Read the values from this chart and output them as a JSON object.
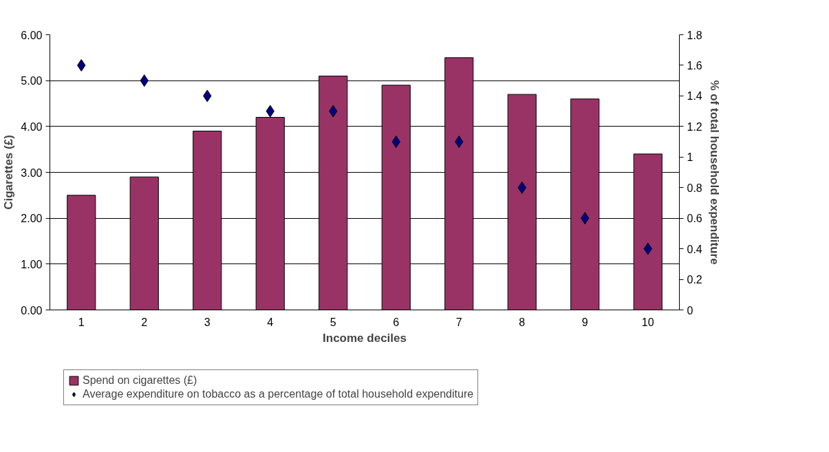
{
  "chart_data": {
    "type": "bar",
    "xlabel": "Income deciles",
    "ylabel": "Cigarettes (£)",
    "y2label": "% of total household expenditure",
    "categories": [
      "1",
      "2",
      "3",
      "4",
      "5",
      "6",
      "7",
      "8",
      "9",
      "10"
    ],
    "series": [
      {
        "name": "Spend on cigarettes (£)",
        "color": "#993366",
        "values": [
          2.5,
          2.9,
          3.9,
          4.2,
          5.1,
          4.9,
          5.5,
          4.7,
          4.6,
          3.4
        ]
      },
      {
        "name": "Average expenditure on tobacco as a percentage of total household expenditure",
        "type": "scatter",
        "axis": "y2",
        "marker": "diamond",
        "color": "#000080",
        "values": [
          1.6,
          1.5,
          1.4,
          1.3,
          1.3,
          1.1,
          1.1,
          0.8,
          0.6,
          0.4
        ]
      }
    ],
    "ylim": [
      0,
      6
    ],
    "yticks": [
      {
        "value": 0,
        "label": "0.00"
      },
      {
        "value": 1,
        "label": "1.00"
      },
      {
        "value": 2,
        "label": "2.00"
      },
      {
        "value": 3,
        "label": "3.00"
      },
      {
        "value": 4,
        "label": "4.00"
      },
      {
        "value": 5,
        "label": "5.00"
      },
      {
        "value": 6,
        "label": "6.00"
      }
    ],
    "y2lim": [
      0,
      1.8
    ],
    "y2ticks": [
      0,
      0.2,
      0.4,
      0.6,
      0.8,
      1,
      1.2,
      1.4,
      1.6,
      1.8
    ],
    "grid": "y",
    "legend": "bottom"
  }
}
